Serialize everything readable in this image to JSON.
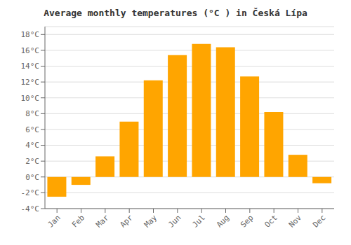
{
  "chart_data": {
    "type": "bar",
    "title": "Average monthly temperatures (°C ) in Česká Lípa",
    "categories": [
      "Jan",
      "Feb",
      "Mar",
      "Apr",
      "May",
      "Jun",
      "Jul",
      "Aug",
      "Sep",
      "Oct",
      "Nov",
      "Dec"
    ],
    "values": [
      -2.5,
      -1.0,
      2.6,
      7.0,
      12.2,
      15.4,
      16.8,
      16.4,
      12.7,
      8.2,
      2.8,
      -0.8
    ],
    "color": "#FFA500",
    "ylim": [
      -4,
      19
    ],
    "yticks": [
      {
        "value": -4,
        "label": "-4°C"
      },
      {
        "value": -2,
        "label": "-2°C"
      },
      {
        "value": 0,
        "label": "0°C"
      },
      {
        "value": 2,
        "label": "2°C"
      },
      {
        "value": 4,
        "label": "4°C"
      },
      {
        "value": 6,
        "label": "6°C"
      },
      {
        "value": 8,
        "label": "8°C"
      },
      {
        "value": 10,
        "label": "10°C"
      },
      {
        "value": 12,
        "label": "12°C"
      },
      {
        "value": 14,
        "label": "14°C"
      },
      {
        "value": 16,
        "label": "16°C"
      },
      {
        "value": 18,
        "label": "18°C"
      }
    ],
    "grid": true
  }
}
